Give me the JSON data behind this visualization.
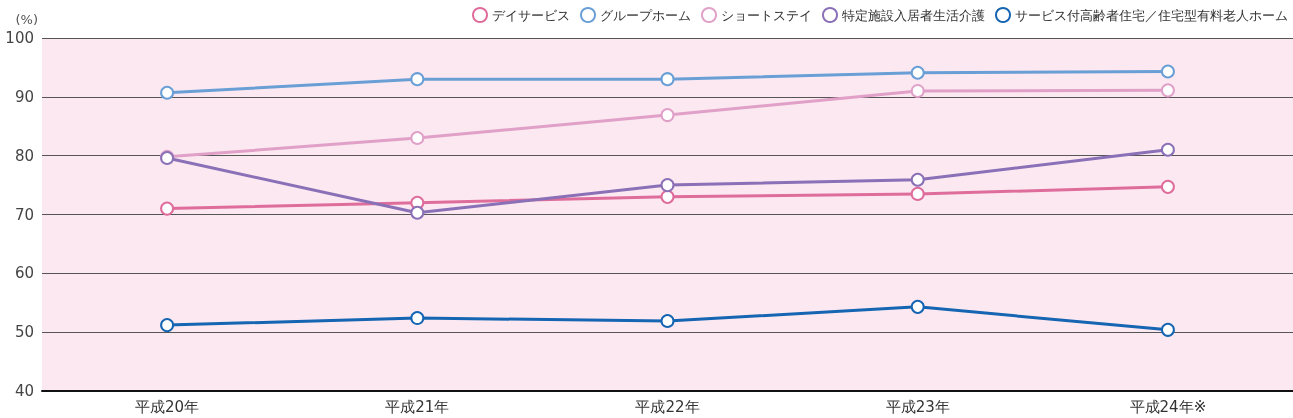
{
  "chart_data": {
    "type": "line",
    "ylabel": "(%)",
    "categories": [
      "平成20年",
      "平成21年",
      "平成22年",
      "平成23年",
      "平成24年※"
    ],
    "series": [
      {
        "name": "デイサービス",
        "color": "#de6d9c",
        "values": [
          71.0,
          72.0,
          73.0,
          73.5,
          74.7
        ]
      },
      {
        "name": "グループホーム",
        "color": "#6a9fd6",
        "values": [
          90.7,
          93.0,
          93.0,
          94.1,
          94.3
        ]
      },
      {
        "name": "ショートステイ",
        "color": "#e0a0c8",
        "values": [
          79.8,
          83.0,
          86.9,
          91.0,
          91.1
        ]
      },
      {
        "name": "特定施設入居者生活介護",
        "color": "#8a70b6",
        "values": [
          79.6,
          70.3,
          75.0,
          75.9,
          81.0
        ]
      },
      {
        "name": "サービス付高齢者住宅／住宅型有料老人ホーム",
        "color": "#1565b3",
        "values": [
          51.2,
          52.4,
          51.9,
          54.3,
          50.4
        ]
      }
    ],
    "ylim": [
      40,
      100
    ],
    "yticks": [
      40,
      50,
      60,
      70,
      80,
      90,
      100
    ],
    "grid": "y",
    "legend": "top right",
    "marker": "circle",
    "line_style": "solid"
  }
}
